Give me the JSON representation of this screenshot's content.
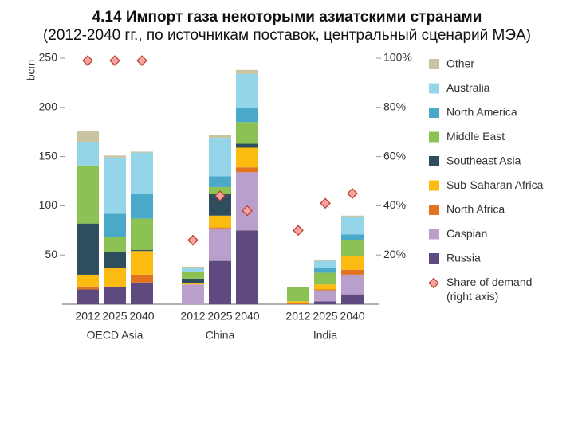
{
  "chart_data": {
    "type": "stacked-bar",
    "title": "4.14 Импорт газа некоторыми азиатскими странами",
    "subtitle": "(2012-2040 гг., по источникам поставок, центральный сценарий МЭА)",
    "y_label": "bcm",
    "categories": [
      "2012",
      "2025",
      "2040",
      "2012",
      "2025",
      "2040",
      "2012",
      "2025",
      "2040"
    ],
    "groups": [
      "OECD Asia",
      "China",
      "India"
    ],
    "ylim": [
      0,
      250
    ],
    "yticks": [
      50,
      100,
      150,
      200,
      250
    ],
    "y2lim": [
      0,
      100
    ],
    "y2ticks": [
      {
        "value": 20,
        "label": "20%"
      },
      {
        "value": 40,
        "label": "40%"
      },
      {
        "value": 60,
        "label": "60%"
      },
      {
        "value": 80,
        "label": "80%"
      },
      {
        "value": 100,
        "label": "100%"
      }
    ],
    "series": [
      {
        "name": "Russia",
        "color": "#5e4a7e",
        "values": [
          15,
          17,
          22,
          0,
          44,
          75,
          0,
          3,
          10
        ]
      },
      {
        "name": "Caspian",
        "color": "#b9a0cc",
        "values": [
          0,
          0,
          0,
          20,
          33,
          59,
          0,
          11,
          20
        ]
      },
      {
        "name": "North Africa",
        "color": "#e2731f",
        "values": [
          3,
          1,
          8,
          0,
          1,
          5,
          1,
          1,
          5
        ]
      },
      {
        "name": "Sub-Saharan Africa",
        "color": "#fbbb10",
        "values": [
          12,
          19,
          24,
          1,
          12,
          20,
          2,
          5,
          14
        ]
      },
      {
        "name": "Southeast Asia",
        "color": "#2e4e5e",
        "values": [
          52,
          16,
          1,
          5,
          22,
          4,
          0,
          0,
          0
        ]
      },
      {
        "name": "Middle East",
        "color": "#8cc153",
        "values": [
          59,
          15,
          32,
          7,
          7,
          22,
          14,
          12,
          16
        ]
      },
      {
        "name": "North America",
        "color": "#4aa9c9",
        "values": [
          0,
          24,
          25,
          0,
          11,
          14,
          0,
          5,
          6
        ]
      },
      {
        "name": "Australia",
        "color": "#95d5ea",
        "values": [
          24,
          57,
          42,
          4,
          39,
          35,
          0,
          7,
          18
        ]
      },
      {
        "name": "Other",
        "color": "#c9c3a0",
        "values": [
          11,
          2,
          1,
          1,
          3,
          4,
          0,
          1,
          1
        ]
      }
    ],
    "markers": {
      "name": "Share of demand",
      "note": "(right axis)",
      "axis": "y2",
      "color": "#f4a5a0",
      "edge_color": "#c0392b",
      "values": [
        99,
        99,
        99,
        26,
        44,
        38,
        30,
        41,
        45
      ]
    }
  }
}
